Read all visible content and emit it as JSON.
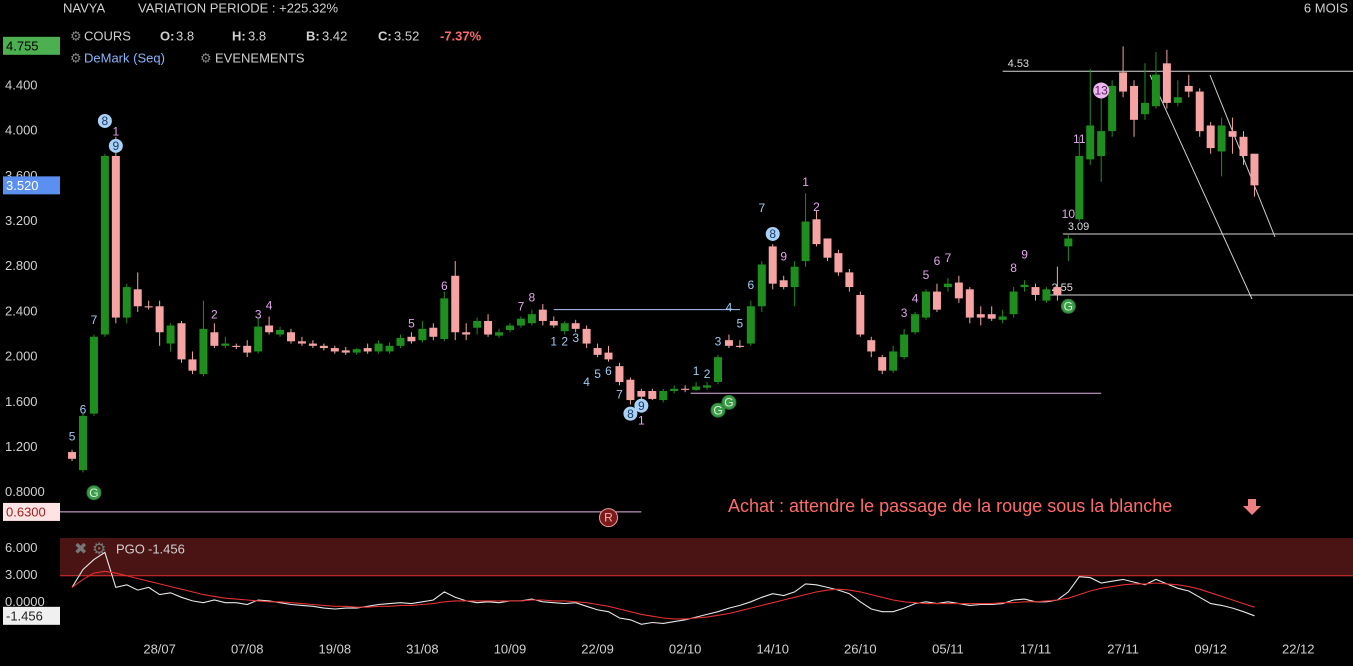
{
  "toolbar": {
    "symbol": "NAVYA",
    "variation": "VARIATION PERIODE : +225.32%",
    "period": "6 MOIS",
    "indicator": "COURS",
    "o_label": "O:",
    "o": "3.8",
    "h_label": "H:",
    "h": "3.8",
    "b_label": "B:",
    "b": "3.42",
    "c_label": "C:",
    "c": "3.52",
    "change": "-7.37%",
    "demark": "DeMark (Seq)",
    "events": "EVENEMENTS"
  },
  "chart_data": [
    {
      "type": "candlestick",
      "up_color": "#1e8e1e",
      "down_color": "#f5a3a3",
      "annotation": "Achat : attendre le passage de la rouge sous la blanche",
      "xlim": [
        -1.1,
        117
      ],
      "xticks": [
        {
          "value": 8,
          "label": "28/07"
        },
        {
          "value": 16,
          "label": "07/08"
        },
        {
          "value": 24,
          "label": "19/08"
        },
        {
          "value": 32,
          "label": "31/08"
        },
        {
          "value": 40,
          "label": "10/09"
        },
        {
          "value": 48,
          "label": "22/09"
        },
        {
          "value": 56,
          "label": "02/10"
        },
        {
          "value": 64,
          "label": "14/10"
        },
        {
          "value": 72,
          "label": "26/10"
        },
        {
          "value": 80,
          "label": "05/11"
        },
        {
          "value": 88,
          "label": "17/11"
        },
        {
          "value": 96,
          "label": "27/11"
        },
        {
          "value": 104,
          "label": "09/12"
        },
        {
          "value": 112,
          "label": "22/12"
        }
      ],
      "ylim": [
        0.47,
        4.895
      ],
      "yticks": [
        {
          "value": 4.4,
          "label": "4.400"
        },
        {
          "value": 4.0,
          "label": "4.000"
        },
        {
          "value": 3.6,
          "label": "3.600"
        },
        {
          "value": 3.2,
          "label": "3.200"
        },
        {
          "value": 2.8,
          "label": "2.800"
        },
        {
          "value": 2.4,
          "label": "2.400"
        },
        {
          "value": 2.0,
          "label": "2.000"
        },
        {
          "value": 1.6,
          "label": "1.600"
        },
        {
          "value": 1.2,
          "label": "1.200"
        },
        {
          "value": 0.8,
          "label": "0.8000"
        }
      ],
      "axis_markers": [
        {
          "value": 4.755,
          "label": "4.755",
          "color": "#4caf50",
          "text_color": "#000000"
        },
        {
          "value": 3.52,
          "label": "3.520",
          "color": "#5b8ff0",
          "text_color": "#ffffff"
        },
        {
          "value": 0.63,
          "label": "0.6300",
          "color": "#fde4e4",
          "text_color": "#a02020"
        }
      ],
      "open": [
        1.16,
        1.0,
        1.5,
        2.2,
        3.78,
        2.35,
        2.6,
        2.45,
        2.45,
        2.12,
        2.3,
        1.98,
        1.85,
        2.22,
        2.1,
        2.1,
        2.1,
        2.05,
        2.28,
        2.2,
        2.22,
        2.14,
        2.12,
        2.1,
        2.08,
        2.06,
        2.04,
        2.08,
        2.05,
        2.05,
        2.1,
        2.18,
        2.15,
        2.26,
        2.16,
        2.72,
        2.22,
        2.26,
        2.32,
        2.19,
        2.24,
        2.28,
        2.3,
        2.42,
        2.32,
        2.23,
        2.3,
        2.25,
        2.08,
        2.04,
        1.92,
        1.8,
        1.7,
        1.7,
        1.62,
        1.7,
        1.72,
        1.71,
        1.73,
        1.78,
        2.15,
        2.1,
        2.12,
        2.45,
        2.98,
        2.68,
        2.62,
        2.85,
        3.22,
        3.05,
        2.92,
        2.75,
        2.55,
        2.15,
        2.0,
        1.88,
        2.0,
        2.22,
        2.35,
        2.58,
        2.62,
        2.66,
        2.6,
        2.38,
        2.38,
        2.33,
        2.38,
        2.62,
        2.62,
        2.5,
        2.62,
        2.98,
        3.22,
        3.75,
        3.78,
        4.0,
        4.52,
        4.4,
        4.15,
        4.22,
        4.6,
        4.25,
        4.4,
        4.35,
        4.05,
        3.82,
        4.0,
        3.95,
        3.8
      ],
      "high": [
        1.18,
        1.5,
        2.2,
        3.8,
        3.95,
        2.65,
        2.75,
        2.5,
        2.5,
        2.3,
        2.32,
        2.05,
        2.5,
        2.3,
        2.18,
        2.12,
        2.15,
        2.35,
        2.36,
        2.27,
        2.25,
        2.18,
        2.15,
        2.12,
        2.1,
        2.09,
        2.08,
        2.12,
        2.15,
        2.13,
        2.2,
        2.22,
        2.32,
        2.3,
        2.58,
        2.85,
        2.3,
        2.35,
        2.38,
        2.25,
        2.3,
        2.36,
        2.42,
        2.47,
        2.36,
        2.32,
        2.33,
        2.28,
        2.12,
        2.1,
        1.95,
        1.82,
        1.72,
        1.72,
        1.72,
        1.75,
        1.75,
        1.78,
        1.78,
        2.02,
        2.2,
        2.15,
        2.5,
        2.85,
        3.0,
        2.72,
        2.85,
        3.45,
        3.3,
        3.05,
        2.95,
        2.78,
        2.58,
        2.18,
        2.02,
        2.1,
        2.25,
        2.4,
        2.6,
        2.65,
        2.7,
        2.72,
        2.62,
        2.45,
        2.45,
        2.42,
        2.62,
        2.68,
        2.65,
        2.62,
        2.8,
        3.08,
        3.95,
        4.55,
        4.3,
        4.45,
        4.75,
        4.45,
        4.6,
        4.7,
        4.72,
        4.45,
        4.5,
        4.38,
        4.08,
        4.12,
        4.12,
        4.0,
        3.8
      ],
      "low": [
        1.08,
        0.98,
        1.48,
        2.18,
        2.3,
        2.3,
        2.4,
        2.42,
        2.1,
        2.05,
        1.95,
        1.85,
        1.83,
        2.08,
        2.08,
        2.07,
        2.0,
        2.03,
        2.2,
        2.18,
        2.12,
        2.1,
        2.08,
        2.06,
        2.03,
        2.02,
        2.02,
        2.03,
        2.03,
        2.03,
        2.08,
        2.12,
        2.13,
        2.15,
        2.14,
        2.15,
        2.15,
        2.2,
        2.18,
        2.17,
        2.22,
        2.26,
        2.28,
        2.28,
        2.26,
        2.2,
        2.22,
        2.08,
        2.0,
        1.96,
        1.75,
        1.58,
        1.6,
        1.62,
        1.6,
        1.68,
        1.69,
        1.7,
        1.71,
        1.76,
        2.08,
        2.08,
        2.1,
        2.4,
        2.6,
        2.6,
        2.45,
        2.8,
        2.98,
        2.85,
        2.72,
        2.58,
        2.18,
        2.0,
        1.85,
        1.86,
        1.98,
        2.2,
        2.33,
        2.4,
        2.58,
        2.48,
        2.3,
        2.28,
        2.32,
        2.3,
        2.35,
        2.58,
        2.5,
        2.48,
        2.5,
        2.85,
        3.2,
        3.7,
        3.55,
        3.95,
        4.3,
        3.95,
        4.1,
        4.2,
        4.2,
        4.22,
        4.3,
        3.95,
        3.8,
        3.6,
        3.8,
        3.7,
        3.42
      ],
      "close": [
        1.1,
        1.48,
        2.18,
        3.78,
        2.35,
        2.62,
        2.45,
        2.44,
        2.22,
        2.28,
        1.98,
        1.88,
        2.25,
        2.1,
        2.12,
        2.09,
        2.04,
        2.27,
        2.22,
        2.24,
        2.14,
        2.12,
        2.1,
        2.08,
        2.05,
        2.04,
        2.07,
        2.05,
        2.12,
        2.1,
        2.17,
        2.14,
        2.25,
        2.18,
        2.52,
        2.22,
        2.2,
        2.32,
        2.2,
        2.22,
        2.28,
        2.34,
        2.38,
        2.32,
        2.28,
        2.3,
        2.25,
        2.12,
        2.02,
        1.98,
        1.78,
        1.62,
        1.65,
        1.63,
        1.7,
        1.72,
        1.71,
        1.74,
        1.75,
        2.0,
        2.1,
        2.09,
        2.45,
        2.82,
        2.65,
        2.62,
        2.8,
        3.2,
        3.0,
        2.88,
        2.75,
        2.62,
        2.2,
        2.05,
        1.88,
        2.05,
        2.2,
        2.38,
        2.58,
        2.42,
        2.65,
        2.52,
        2.35,
        2.35,
        2.34,
        2.36,
        2.58,
        2.64,
        2.55,
        2.6,
        2.55,
        3.05,
        3.78,
        4.05,
        4.0,
        4.4,
        4.35,
        4.1,
        4.25,
        4.5,
        4.25,
        4.3,
        4.35,
        4.0,
        3.85,
        4.05,
        3.95,
        3.78,
        3.52
      ],
      "levels": [
        {
          "value": 4.53,
          "label": "4.53",
          "start": 85,
          "end": 117,
          "color": "#d8d8d8"
        },
        {
          "value": 3.09,
          "label": "3.09",
          "start": 90.5,
          "end": 117,
          "color": "#d8d8d8"
        },
        {
          "value": 2.55,
          "label": "2.55",
          "start": 89,
          "end": 117,
          "color": "#d8d8d8"
        },
        {
          "value": 2.42,
          "start": 44,
          "end": 61,
          "color": "#a8c8f0"
        },
        {
          "value": 1.68,
          "start": 56.5,
          "end": 94,
          "color": "#e0b0e8"
        },
        {
          "value": 0.63,
          "start": -1.1,
          "end": 52,
          "color": "#e8b8e8"
        }
      ],
      "annotations": [
        {
          "text": "5",
          "i": 0,
          "price": 1.3,
          "style": "blue"
        },
        {
          "text": "6",
          "i": 1,
          "price": 1.54,
          "style": "blue"
        },
        {
          "text": "7",
          "i": 2,
          "price": 2.33,
          "style": "blue"
        },
        {
          "text": "8",
          "i": 3,
          "price": 4.09,
          "style": "blue-circle"
        },
        {
          "text": "1",
          "i": 4,
          "price": 4.0,
          "style": "pink"
        },
        {
          "text": "9",
          "i": 4,
          "price": 3.87,
          "style": "blue-circle"
        },
        {
          "text": "G",
          "i": 2,
          "price": 0.8,
          "style": "green-circle"
        },
        {
          "text": "2",
          "i": 13,
          "price": 2.38,
          "style": "pink"
        },
        {
          "text": "3",
          "i": 17,
          "price": 2.38,
          "style": "pink"
        },
        {
          "text": "4",
          "i": 18,
          "price": 2.46,
          "style": "pink"
        },
        {
          "text": "5",
          "i": 31,
          "price": 2.3,
          "style": "pink"
        },
        {
          "text": "6",
          "i": 34,
          "price": 2.63,
          "style": "pink"
        },
        {
          "text": "7",
          "i": 41,
          "price": 2.45,
          "style": "pink"
        },
        {
          "text": "8",
          "i": 42,
          "price": 2.53,
          "style": "pink"
        },
        {
          "text": "1",
          "i": 44,
          "price": 2.14,
          "style": "blue"
        },
        {
          "text": "2",
          "i": 45,
          "price": 2.14,
          "style": "blue"
        },
        {
          "text": "3",
          "i": 46,
          "price": 2.17,
          "style": "blue"
        },
        {
          "text": "4",
          "i": 47,
          "price": 1.78,
          "style": "blue"
        },
        {
          "text": "5",
          "i": 48,
          "price": 1.85,
          "style": "blue"
        },
        {
          "text": "6",
          "i": 49,
          "price": 1.88,
          "style": "blue"
        },
        {
          "text": "7",
          "i": 50,
          "price": 1.67,
          "style": "blue"
        },
        {
          "text": "8",
          "i": 51,
          "price": 1.5,
          "style": "blue-circle"
        },
        {
          "text": "9",
          "i": 52,
          "price": 1.57,
          "style": "blue-circle"
        },
        {
          "text": "1",
          "i": 52,
          "price": 1.44,
          "style": "pink"
        },
        {
          "text": "1",
          "i": 57,
          "price": 1.88,
          "style": "blue"
        },
        {
          "text": "2",
          "i": 58,
          "price": 1.85,
          "style": "blue"
        },
        {
          "text": "3",
          "i": 59,
          "price": 2.14,
          "style": "blue"
        },
        {
          "text": "4",
          "i": 60,
          "price": 2.44,
          "style": "blue"
        },
        {
          "text": "5",
          "i": 61,
          "price": 2.3,
          "style": "blue"
        },
        {
          "text": "6",
          "i": 62,
          "price": 2.64,
          "style": "blue"
        },
        {
          "text": "7",
          "i": 63,
          "price": 3.32,
          "style": "blue"
        },
        {
          "text": "8",
          "i": 64,
          "price": 3.09,
          "style": "blue-circle"
        },
        {
          "text": "9",
          "i": 65,
          "price": 2.89,
          "style": "pink"
        },
        {
          "text": "1",
          "i": 67,
          "price": 3.55,
          "style": "pink"
        },
        {
          "text": "2",
          "i": 68,
          "price": 3.33,
          "style": "pink"
        },
        {
          "text": "G",
          "i": 59,
          "price": 1.53,
          "style": "green-circle"
        },
        {
          "text": "G",
          "i": 60,
          "price": 1.6,
          "style": "green-circle"
        },
        {
          "text": "3",
          "i": 76,
          "price": 2.39,
          "style": "pink"
        },
        {
          "text": "4",
          "i": 77,
          "price": 2.52,
          "style": "pink"
        },
        {
          "text": "5",
          "i": 78,
          "price": 2.73,
          "style": "pink"
        },
        {
          "text": "6",
          "i": 79,
          "price": 2.85,
          "style": "pink"
        },
        {
          "text": "7",
          "i": 80,
          "price": 2.88,
          "style": "pink"
        },
        {
          "text": "8",
          "i": 86,
          "price": 2.79,
          "style": "pink"
        },
        {
          "text": "9",
          "i": 87,
          "price": 2.91,
          "style": "pink"
        },
        {
          "text": "10",
          "i": 91,
          "price": 3.27,
          "style": "pink"
        },
        {
          "text": "11",
          "i": 92,
          "price": 3.93,
          "style": "pink"
        },
        {
          "text": "13",
          "i": 94,
          "price": 4.36,
          "style": "pink-circle"
        },
        {
          "text": "G",
          "i": 91,
          "price": 2.45,
          "style": "green-circle"
        },
        {
          "text": "R",
          "i": 49,
          "price": 0.58,
          "style": "red-circle"
        }
      ]
    },
    {
      "type": "line",
      "ylim": [
        -3.7,
        7.2
      ],
      "yticks": [
        {
          "value": 6,
          "label": "6.000"
        },
        {
          "value": 3,
          "label": "3.000"
        },
        {
          "value": 0,
          "label": "0.0000"
        }
      ],
      "marker": {
        "value": -1.456,
        "label": "-1.456"
      },
      "series": [
        {
          "name": "PGO",
          "color": "#e6e6e6",
          "values": [
            1.7,
            3.7,
            4.8,
            5.6,
            1.7,
            2.0,
            1.4,
            1.7,
            0.9,
            1.1,
            0.6,
            0.2,
            0,
            0.3,
            0,
            0,
            -0.2,
            0.3,
            0.2,
            0,
            -0.2,
            -0.3,
            -0.4,
            -0.6,
            -0.7,
            -0.6,
            -0.6,
            -0.4,
            -0.2,
            -0.1,
            0,
            -0.1,
            0.1,
            0.3,
            1.2,
            0.6,
            0.2,
            0,
            0.1,
            0,
            0.2,
            0.2,
            0.4,
            0.1,
            0,
            -0.1,
            0,
            -0.4,
            -0.8,
            -1.0,
            -1.7,
            -1.9,
            -2.4,
            -2.2,
            -2.3,
            -2.1,
            -1.9,
            -1.6,
            -1.3,
            -1.0,
            -0.6,
            -0.3,
            0.1,
            0.6,
            1.0,
            0.8,
            1.2,
            2.1,
            2.0,
            1.7,
            1.4,
            1.0,
            0.1,
            -0.7,
            -1.0,
            -1.0,
            -0.6,
            -0.1,
            0.1,
            -0.1,
            0.1,
            -0.1,
            -0.3,
            -0.2,
            -0.2,
            -0.1,
            0.3,
            0.4,
            0.1,
            0.1,
            0.3,
            1.2,
            2.9,
            2.8,
            2.2,
            2.4,
            2.6,
            2.3,
            2.0,
            2.6,
            2.1,
            1.6,
            1.3,
            0.6,
            -0.1,
            -0.3,
            -0.6,
            -1.0,
            -1.456
          ]
        },
        {
          "color": "#e03030",
          "values": [
            1.7,
            2.6,
            3.3,
            3.5,
            3.3,
            3.0,
            2.7,
            2.4,
            2.1,
            1.8,
            1.5,
            1.2,
            0.9,
            0.7,
            0.5,
            0.4,
            0.3,
            0.2,
            0.1,
            0.1,
            0,
            -0.1,
            -0.2,
            -0.3,
            -0.4,
            -0.4,
            -0.5,
            -0.5,
            -0.4,
            -0.4,
            -0.3,
            -0.3,
            -0.2,
            -0.1,
            0.1,
            0.2,
            0.2,
            0.2,
            0.2,
            0.2,
            0.2,
            0.2,
            0.3,
            0.3,
            0.2,
            0.2,
            0.1,
            0,
            -0.2,
            -0.4,
            -0.7,
            -1.0,
            -1.3,
            -1.5,
            -1.7,
            -1.8,
            -1.8,
            -1.7,
            -1.6,
            -1.4,
            -1.2,
            -0.9,
            -0.6,
            -0.3,
            0,
            0.3,
            0.6,
            0.9,
            1.2,
            1.4,
            1.5,
            1.4,
            1.2,
            0.9,
            0.6,
            0.3,
            0.1,
            0,
            -0.1,
            -0.1,
            -0.1,
            -0.1,
            -0.1,
            -0.1,
            -0.1,
            0,
            0,
            0.1,
            0.1,
            0.2,
            0.3,
            0.5,
            0.9,
            1.3,
            1.6,
            1.8,
            2.0,
            2.1,
            2.1,
            2.2,
            2.1,
            2.0,
            1.8,
            1.5,
            1.1,
            0.7,
            0.3,
            -0.1,
            -0.5
          ]
        }
      ]
    }
  ]
}
